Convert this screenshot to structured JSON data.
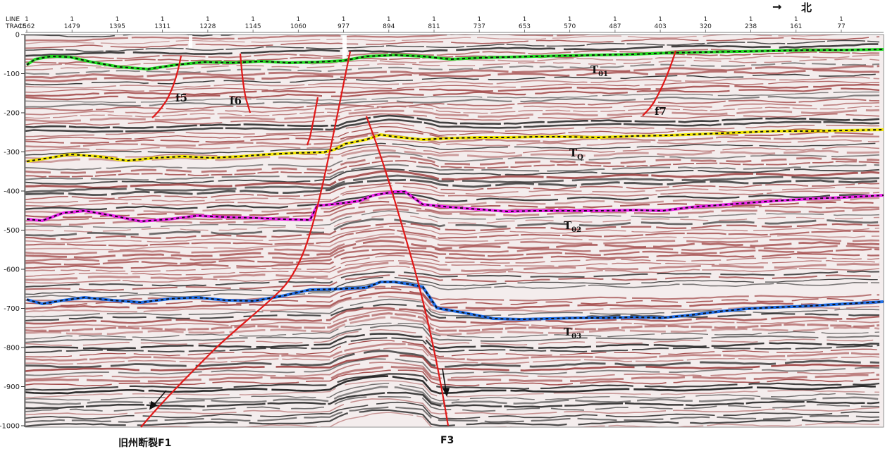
{
  "header": {
    "line_label": "LINE",
    "trace_label": "TRACE",
    "line_number": "1",
    "traces": [
      "1562",
      "1479",
      "1395",
      "1311",
      "1228",
      "1145",
      "1060",
      "977",
      "894",
      "811",
      "737",
      "653",
      "570",
      "487",
      "403",
      "320",
      "238",
      "161",
      "77"
    ]
  },
  "north_indicator": {
    "arrow": "→",
    "label": "北"
  },
  "time_axis": {
    "ticks": [
      "0",
      "-100",
      "-200",
      "-300",
      "-400",
      "-500",
      "-600",
      "-700",
      "-800",
      "-900",
      "-1000"
    ]
  },
  "horizons": [
    {
      "name": "T01",
      "base": "T",
      "sub": "01",
      "color": "#22dd22"
    },
    {
      "name": "TQ",
      "base": "T",
      "sub": "Q",
      "color": "#f2e600"
    },
    {
      "name": "T02",
      "base": "T",
      "sub": "02",
      "color": "#ee22ee"
    },
    {
      "name": "T03",
      "base": "T",
      "sub": "03",
      "color": "#1f6ee8"
    }
  ],
  "faults": [
    {
      "id": "f5"
    },
    {
      "id": "f6"
    },
    {
      "id": "f7"
    }
  ],
  "fault_captions": {
    "f1": "旧州断裂F1",
    "f3": "F3"
  },
  "colors": {
    "fault": "#e01818",
    "seismic_red": "#9b3b3b",
    "seismic_black": "#141414"
  }
}
